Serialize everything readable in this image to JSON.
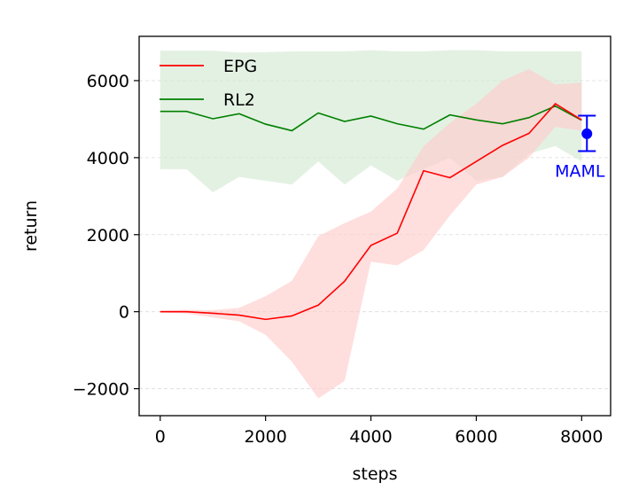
{
  "chart_data": {
    "type": "line",
    "xlabel": "steps",
    "ylabel": "return",
    "xlim": [
      -400,
      8550
    ],
    "ylim": [
      -2700,
      7150
    ],
    "xticks": [
      0,
      2000,
      4000,
      6000,
      8000
    ],
    "xtick_labels": [
      "0",
      "2000",
      "4000",
      "6000",
      "8000"
    ],
    "yticks": [
      -2000,
      0,
      2000,
      4000,
      6000
    ],
    "ytick_labels": [
      "−2000",
      "0",
      "2000",
      "4000",
      "6000"
    ],
    "grid": "horizontal dashed",
    "legend_position": "top-left",
    "series": [
      {
        "name": "EPG",
        "color": "#ff0000",
        "band_color": "#ffcccc",
        "x": [
          0,
          500,
          1000,
          1500,
          2000,
          2500,
          3000,
          3500,
          4000,
          4500,
          5000,
          5500,
          6000,
          6500,
          7000,
          7500,
          8000
        ],
        "values": [
          0,
          0,
          -40,
          -90,
          -200,
          -110,
          170,
          790,
          1720,
          2040,
          3660,
          3480,
          3900,
          4320,
          4630,
          5400,
          4980
        ],
        "upper": [
          20,
          50,
          40,
          100,
          400,
          800,
          1960,
          2300,
          2600,
          3200,
          4300,
          4900,
          5400,
          6000,
          6300,
          5900,
          5950
        ],
        "lower": [
          -20,
          -50,
          -150,
          -250,
          -600,
          -1300,
          -2250,
          -1800,
          1300,
          1200,
          1600,
          2500,
          3300,
          3500,
          4000,
          4800,
          4700
        ]
      },
      {
        "name": "RL2",
        "color": "#008000",
        "band_color": "#d4ead4",
        "x": [
          0,
          500,
          1000,
          1500,
          2000,
          2500,
          3000,
          3500,
          4000,
          4500,
          5000,
          5500,
          6000,
          6500,
          7000,
          7500,
          8000
        ],
        "values": [
          5200,
          5200,
          5010,
          5140,
          4870,
          4700,
          5160,
          4940,
          5080,
          4880,
          4740,
          5110,
          4980,
          4880,
          5040,
          5340,
          4970
        ],
        "upper": [
          6780,
          6780,
          6780,
          6730,
          6740,
          6760,
          6760,
          6760,
          6790,
          6760,
          6760,
          6790,
          6790,
          6760,
          6760,
          6760,
          6760
        ],
        "lower": [
          3700,
          3700,
          3100,
          3500,
          3400,
          3300,
          3900,
          3300,
          3800,
          3400,
          3700,
          4000,
          3400,
          3500,
          4100,
          4300,
          3900
        ]
      }
    ],
    "annotations": [
      {
        "label": "MAML",
        "color": "#0000ff",
        "x": 8100,
        "y": 4620,
        "yerr_low": 4170,
        "yerr_high": 5090
      }
    ]
  }
}
